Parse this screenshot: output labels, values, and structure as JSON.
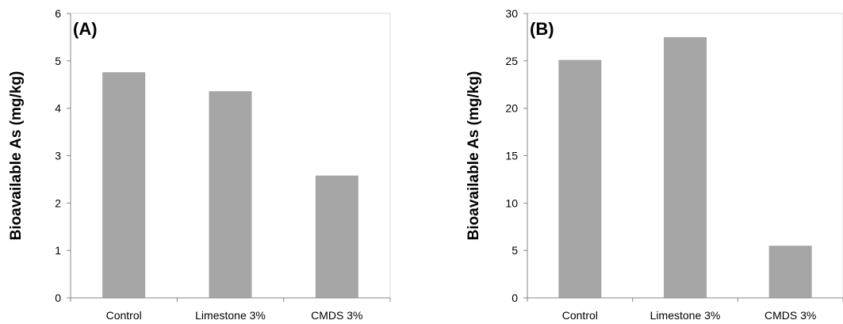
{
  "chart_data": [
    {
      "type": "bar",
      "panel_label": "(A)",
      "categories": [
        "Control",
        "Limestone 3%",
        "CMDS 3%"
      ],
      "values": [
        4.76,
        4.36,
        2.58
      ],
      "ylabel": "Bioavailable  As (mg/kg)",
      "ylim": [
        0,
        6
      ],
      "yticks": [
        0,
        1,
        2,
        3,
        4,
        5,
        6
      ],
      "grid": false,
      "bar_color": "#a6a6a6"
    },
    {
      "type": "bar",
      "panel_label": "(B)",
      "categories": [
        "Control",
        "Limestone 3%",
        "CMDS 3%"
      ],
      "values": [
        25.1,
        27.5,
        5.5
      ],
      "ylabel": "Bioavailable  As (mg/kg)",
      "ylim": [
        0,
        30
      ],
      "yticks": [
        0,
        5,
        10,
        15,
        20,
        25,
        30
      ],
      "grid": false,
      "bar_color": "#a6a6a6"
    }
  ]
}
